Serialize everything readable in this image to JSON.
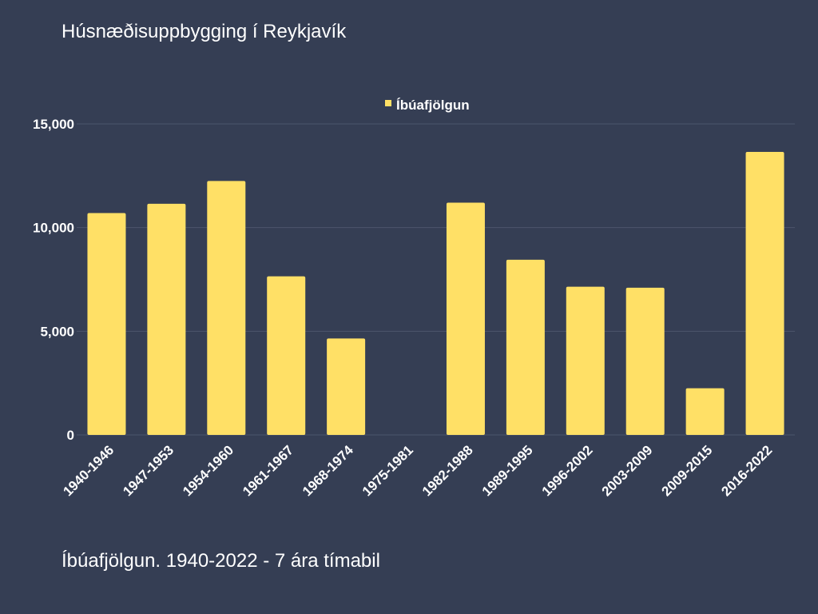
{
  "title": "Húsnæðisuppbygging í Reykjavík",
  "caption": "Íbúafjölgun. 1940-2022 - 7 ára tímabil",
  "colors": {
    "background": "#353e54",
    "bar": "#ffe066",
    "grid": "#4c556b",
    "text": "#ffffff"
  },
  "chart_data": {
    "type": "bar",
    "categories": [
      "1940-1946",
      "1947-1953",
      "1954-1960",
      "1961-1967",
      "1968-1974",
      "1975-1981",
      "1982-1988",
      "1989-1995",
      "1996-2002",
      "2003-2009",
      "2009-2015",
      "2016-2022"
    ],
    "series": [
      {
        "name": "Íbúafjölgun",
        "values": [
          10700,
          11150,
          12250,
          7650,
          4650,
          0,
          11200,
          8450,
          7150,
          7100,
          2250,
          13650
        ]
      }
    ],
    "yticks": [
      0,
      5000,
      10000,
      15000
    ],
    "ytick_labels": [
      "0",
      "5,000",
      "10,000",
      "15,000"
    ],
    "ylim": [
      0,
      15000
    ],
    "grid": true,
    "legend": "top-center"
  }
}
